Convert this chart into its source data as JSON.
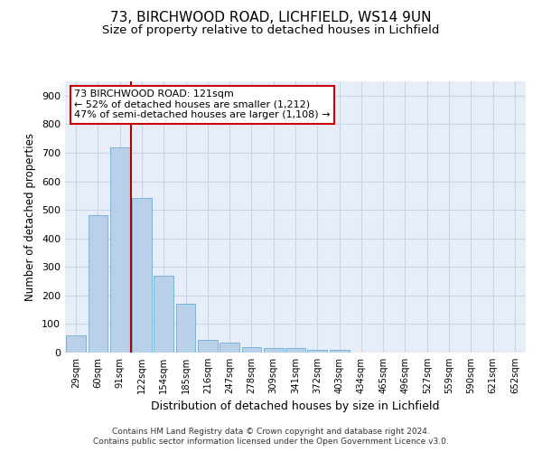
{
  "title1": "73, BIRCHWOOD ROAD, LICHFIELD, WS14 9UN",
  "title2": "Size of property relative to detached houses in Lichfield",
  "xlabel": "Distribution of detached houses by size in Lichfield",
  "ylabel": "Number of detached properties",
  "bar_labels": [
    "29sqm",
    "60sqm",
    "91sqm",
    "122sqm",
    "154sqm",
    "185sqm",
    "216sqm",
    "247sqm",
    "278sqm",
    "309sqm",
    "341sqm",
    "372sqm",
    "403sqm",
    "434sqm",
    "465sqm",
    "496sqm",
    "527sqm",
    "559sqm",
    "590sqm",
    "621sqm",
    "652sqm"
  ],
  "bar_values": [
    60,
    480,
    720,
    540,
    270,
    170,
    45,
    35,
    18,
    15,
    15,
    8,
    8,
    0,
    0,
    0,
    0,
    0,
    0,
    0,
    0
  ],
  "bar_color": "#b8d0e8",
  "bar_edgecolor": "#6baed6",
  "vline_color": "#aa0000",
  "annotation_title": "73 BIRCHWOOD ROAD: 121sqm",
  "annotation_line1": "← 52% of detached houses are smaller (1,212)",
  "annotation_line2": "47% of semi-detached houses are larger (1,108) →",
  "annotation_box_color": "#ffffff",
  "annotation_box_edgecolor": "#cc0000",
  "ylim": [
    0,
    950
  ],
  "yticks": [
    0,
    100,
    200,
    300,
    400,
    500,
    600,
    700,
    800,
    900
  ],
  "footer1": "Contains HM Land Registry data © Crown copyright and database right 2024.",
  "footer2": "Contains public sector information licensed under the Open Government Licence v3.0.",
  "bg_color": "#ffffff",
  "axes_bg_color": "#e8eef8",
  "grid_color": "#c8d4e8",
  "title_fontsize": 11,
  "subtitle_fontsize": 9.5,
  "bar_width": 0.9
}
